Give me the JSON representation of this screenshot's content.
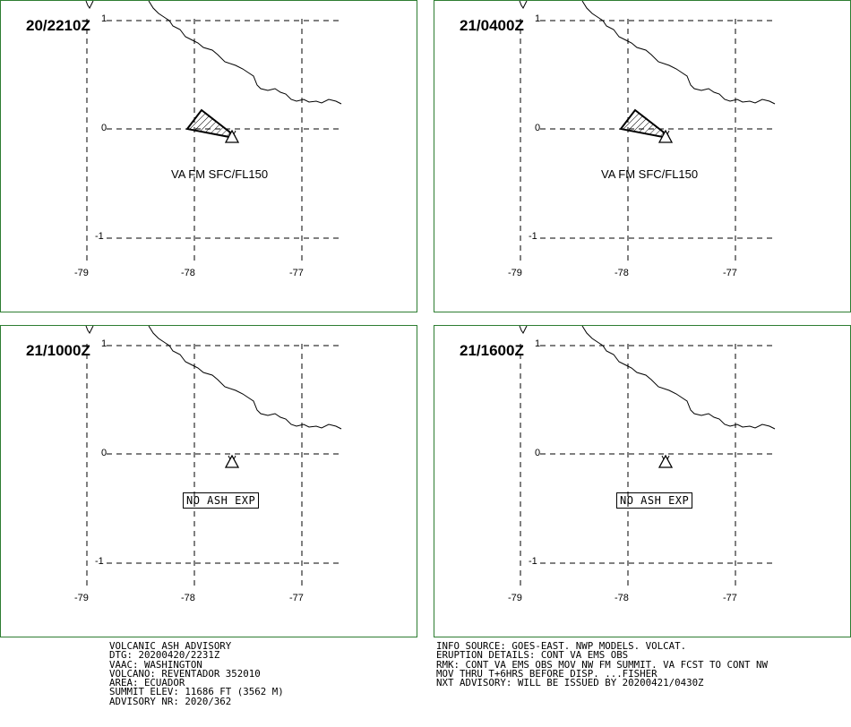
{
  "panels": [
    {
      "time": "20/2210Z",
      "label": "VA FM SFC/FL150",
      "label_type": "plain",
      "ash_cloud": true
    },
    {
      "time": "21/0400Z",
      "label": "VA FM SFC/FL150",
      "label_type": "plain",
      "ash_cloud": true
    },
    {
      "time": "21/1000Z",
      "label": "NO ASH EXP",
      "label_type": "boxed",
      "ash_cloud": false
    },
    {
      "time": "21/1600Z",
      "label": "NO ASH EXP",
      "label_type": "boxed",
      "ash_cloud": false
    }
  ],
  "axes": {
    "lat_labels": [
      "1",
      "0",
      "-1"
    ],
    "lon_labels": [
      "-79",
      "-78",
      "-77"
    ]
  },
  "advisory_left": [
    "VOLCANIC ASH ADVISORY",
    "DTG: 20200420/2231Z",
    "VAAC: WASHINGTON",
    "VOLCANO: REVENTADOR 352010",
    "AREA: ECUADOR",
    "SUMMIT ELEV: 11686 FT (3562 M)",
    "ADVISORY NR: 2020/362"
  ],
  "advisory_right": [
    "INFO SOURCE: GOES-EAST. NWP MODELS. VOLCAT.",
    "ERUPTION DETAILS: CONT VA EMS OBS",
    "RMK: CONT VA EMS OBS MOV NW FM SUMMIT. VA FCST TO CONT NW",
    "MOV THRU T+6HRS BEFORE DISP. ...FISHER",
    "NXT ADVISORY: WILL BE ISSUED BY 20200421/0430Z"
  ],
  "colors": {
    "border": "#2e7d32",
    "lines": "#000000"
  },
  "icons": {
    "volcano": "volcano-triangle-icon",
    "ash": "ash-cloud-hatched-polygon"
  }
}
